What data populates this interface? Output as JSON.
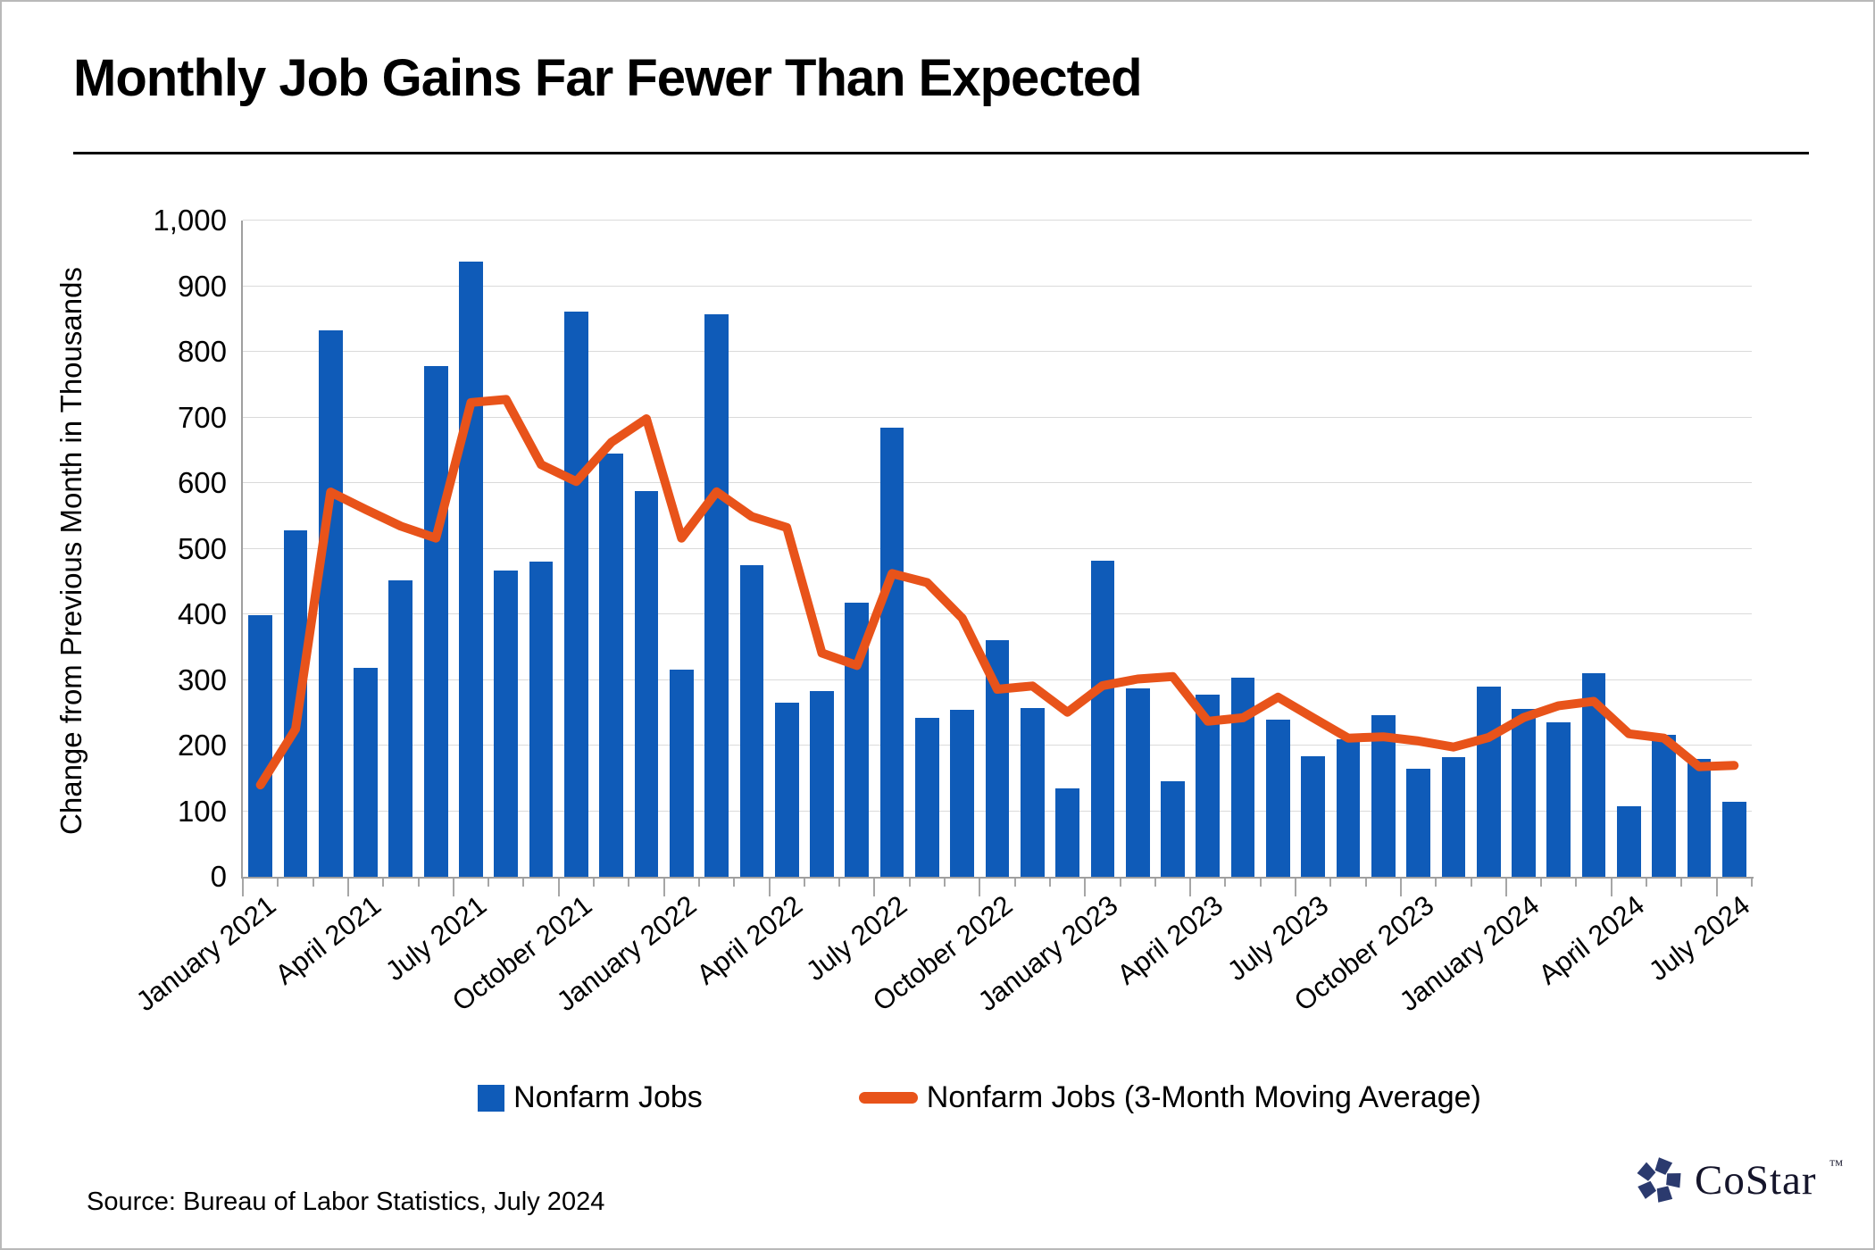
{
  "title": "Monthly Job Gains Far Fewer Than Expected",
  "y_axis": {
    "title": "Change from Previous Month in Thousands",
    "tick_labels": [
      "0",
      "100",
      "200",
      "300",
      "400",
      "500",
      "600",
      "700",
      "800",
      "900",
      "1,000"
    ],
    "min": 0,
    "max": 1000,
    "step": 100
  },
  "legend": {
    "items": [
      {
        "label": "Nonfarm Jobs",
        "marker": "blue-square"
      },
      {
        "label": "Nonfarm Jobs (3-Month Moving Average)",
        "marker": "orange-line"
      }
    ]
  },
  "source": "Source: Bureau of Labor Statistics, July 2024",
  "logo": {
    "text": "CoStar",
    "tm": "™",
    "icon": "pinwheel-star-icon"
  },
  "colors": {
    "bar": "#0F5BB8",
    "line": "#E8531A",
    "logo_navy": "#2B3A6E",
    "grid": "#dadada",
    "axis": "#9f9f9f"
  },
  "chart_data": {
    "type": "bar",
    "title": "Monthly Job Gains Far Fewer Than Expected",
    "xlabel": "",
    "ylabel": "Change from Previous Month in Thousands",
    "ylim": [
      0,
      1000
    ],
    "grid": "horizontal",
    "x_ticks_every": 3,
    "legend_position": "bottom-center",
    "categories": [
      "January 2021",
      "February 2021",
      "March 2021",
      "April 2021",
      "May 2021",
      "June 2021",
      "July 2021",
      "August 2021",
      "September 2021",
      "October 2021",
      "November 2021",
      "December 2021",
      "January 2022",
      "February 2022",
      "March 2022",
      "April 2022",
      "May 2022",
      "June 2022",
      "July 2022",
      "August 2022",
      "September 2022",
      "October 2022",
      "November 2022",
      "December 2022",
      "January 2023",
      "February 2023",
      "March 2023",
      "April 2023",
      "May 2023",
      "June 2023",
      "July 2023",
      "August 2023",
      "September 2023",
      "October 2023",
      "November 2023",
      "December 2023",
      "January 2024",
      "February 2024",
      "March 2024",
      "April 2024",
      "May 2024",
      "June 2024",
      "July 2024"
    ],
    "series": [
      {
        "name": "Nonfarm Jobs",
        "type": "bar",
        "color": "#0F5BB8",
        "values": [
          398,
          528,
          833,
          318,
          452,
          778,
          938,
          466,
          480,
          861,
          645,
          588,
          315,
          857,
          475,
          265,
          283,
          418,
          685,
          242,
          255,
          360,
          257,
          135,
          482,
          287,
          146,
          278,
          303,
          240,
          184,
          210,
          246,
          165,
          182,
          290,
          256,
          236,
          310,
          108,
          216,
          179,
          114
        ]
      },
      {
        "name": "Nonfarm Jobs (3-Month Moving Average)",
        "type": "line",
        "color": "#E8531A",
        "note": "trailing 3-month average; first two points include late-2020 data not shown as bars",
        "values": [
          140,
          225,
          586.3,
          559.7,
          534.3,
          516.0,
          722.7,
          727.3,
          628.0,
          602.3,
          662.0,
          698.0,
          516.0,
          586.7,
          549.0,
          532.3,
          341.0,
          322.0,
          462.0,
          448.3,
          394.0,
          285.7,
          290.7,
          250.7,
          291.3,
          301.3,
          305.0,
          237.0,
          242.3,
          273.7,
          242.3,
          211.3,
          213.3,
          207.0,
          197.7,
          212.3,
          242.7,
          260.7,
          267.3,
          218.0,
          211.3,
          167.7,
          169.7
        ]
      }
    ]
  }
}
